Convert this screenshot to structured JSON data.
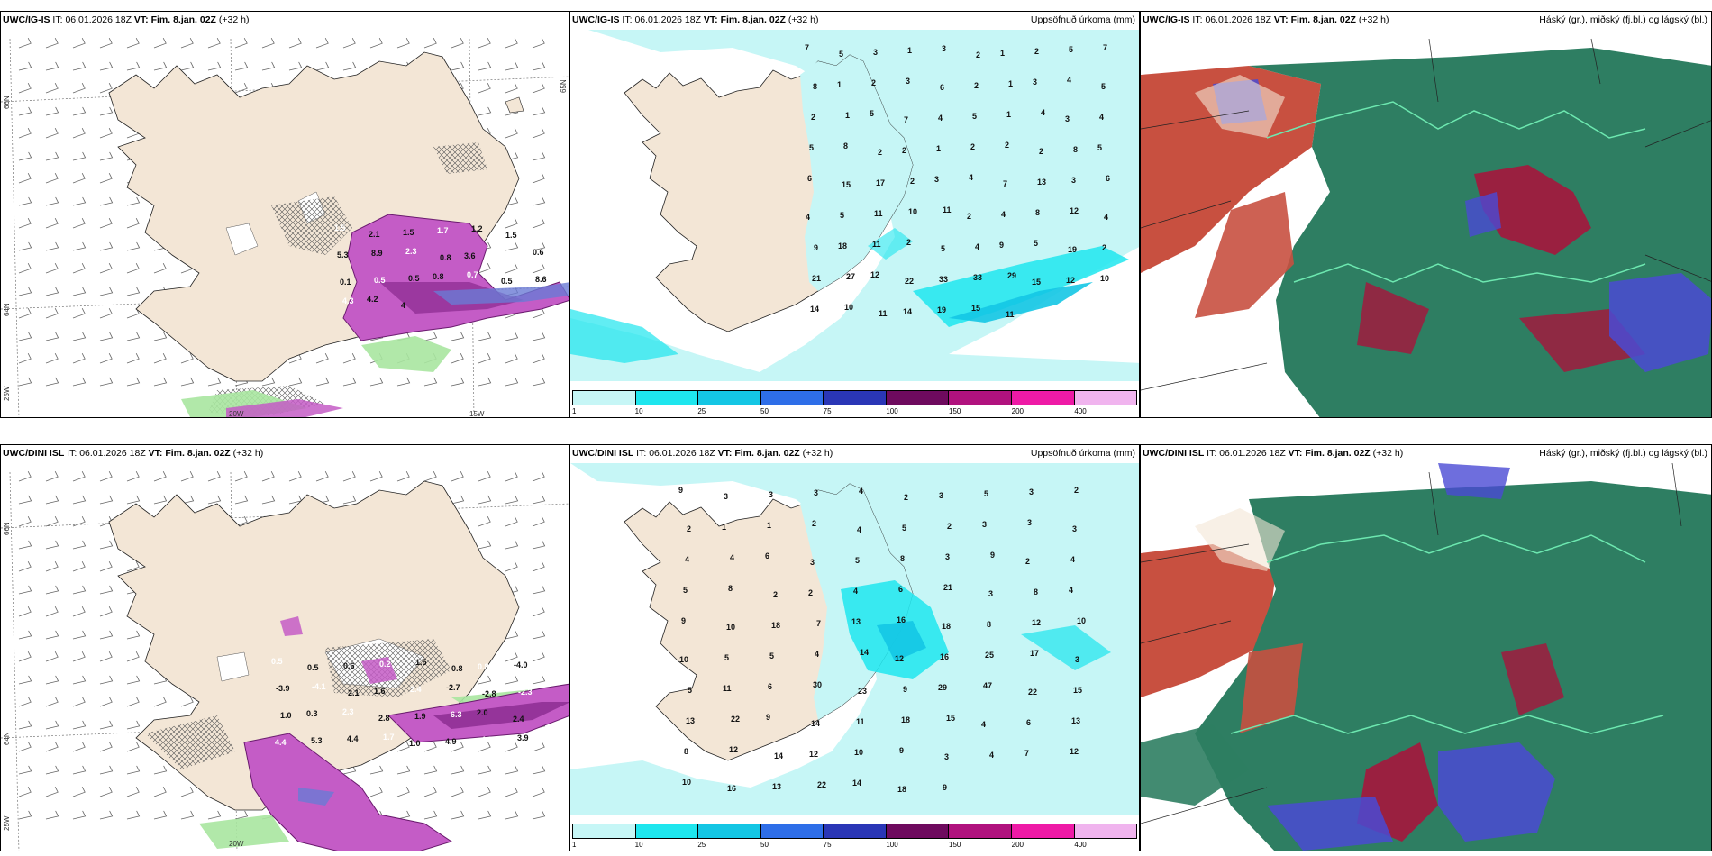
{
  "panels": {
    "p1": {
      "model": "UWC/IG-IS",
      "it_label": "IT:",
      "it_value": "06.01.2026 18Z",
      "vt_label": "VT:",
      "vt_value": "Fim. 8.jan. 02Z",
      "lead": "(+32 h)",
      "coords": {
        "lat66": "66N",
        "lat64": "64N",
        "lon25": "25W",
        "lon20": "20W",
        "lon15": "15W",
        "lat65r": "65N"
      },
      "labels": [
        "1.5",
        "2.1",
        "1.5",
        "1.7",
        "1.2",
        "1.5",
        "0.8",
        "5.3",
        "8.9",
        "2.3",
        "0.8",
        "3.6",
        "0.6",
        "0.6",
        "0.1",
        "0.5",
        "0.5",
        "0.8",
        "0.7",
        "0.5",
        "8.6",
        "4.3",
        "4.2",
        "4"
      ]
    },
    "p2": {
      "model": "UWC/IG-IS",
      "it_label": "IT:",
      "it_value": "06.01.2026 18Z",
      "vt_label": "VT:",
      "vt_value": "Fim. 8.jan. 02Z",
      "lead": "(+32 h)",
      "title_right": "Uppsöfnuð úrkoma (mm)",
      "labels": [
        "7",
        "5",
        "3",
        "1",
        "3",
        "2",
        "1",
        "2",
        "5",
        "7",
        "8",
        "1",
        "2",
        "3",
        "6",
        "2",
        "1",
        "3",
        "4",
        "5",
        "2",
        "1",
        "5",
        "7",
        "4",
        "5",
        "1",
        "4",
        "3",
        "4",
        "5",
        "8",
        "2",
        "2",
        "1",
        "2",
        "2",
        "2",
        "8",
        "5",
        "6",
        "15",
        "17",
        "2",
        "3",
        "4",
        "7",
        "13",
        "3",
        "6",
        "4",
        "5",
        "11",
        "10",
        "11",
        "2",
        "4",
        "8",
        "12",
        "4",
        "9",
        "18",
        "11",
        "2",
        "5",
        "4",
        "9",
        "5",
        "19",
        "2",
        "21",
        "27",
        "12",
        "22",
        "33",
        "33",
        "29",
        "15",
        "12",
        "10",
        "14",
        "10",
        "11",
        "14",
        "19",
        "15",
        "11"
      ],
      "colorbar_ticks": [
        "1",
        "10",
        "25",
        "50",
        "75",
        "100",
        "150",
        "200",
        "400"
      ],
      "colorbar_colors": [
        "#c6f6f6",
        "#1ee6ee",
        "#14c6e4",
        "#2e6ee8",
        "#2a36b6",
        "#6e0a5e",
        "#b0127e",
        "#ee1aa6",
        "#f0b4ee"
      ]
    },
    "p3": {
      "model": "UWC/IG-IS",
      "it_label": "IT:",
      "it_value": "06.01.2026 18Z",
      "vt_label": "VT:",
      "vt_value": "Fim. 8.jan. 02Z",
      "lead": "(+32 h)",
      "title_right": "Háský (gr.), miðský (fj.bl.) og lágský (bl.)"
    },
    "p4": {
      "model": "UWC/DINI ISL",
      "it_label": "IT:",
      "it_value": "06.01.2026 18Z",
      "vt_label": "VT:",
      "vt_value": "Fim. 8.jan. 02Z",
      "lead": "(+32 h)",
      "coords": {
        "lat66": "66N",
        "lat64": "64N",
        "lon25": "25W",
        "lon20": "20W"
      },
      "labels": [
        "0.5",
        "0.5",
        "0.6",
        "0.2",
        "1.5",
        "0.8",
        "0.8",
        "-4.0",
        "-3.9",
        "-4.1",
        "2.1",
        "1.6",
        "2.4",
        "-2.7",
        "-2.8",
        "-2.3",
        "1.0",
        "0.3",
        "2.3",
        "2.8",
        "1.9",
        "6.3",
        "2.0",
        "2.4",
        "4.4",
        "5.3",
        "4.4",
        "1.7",
        "1.0",
        "4.9",
        "4.9",
        "3.9"
      ]
    },
    "p5": {
      "model": "UWC/DINI ISL",
      "it_label": "IT:",
      "it_value": "06.01.2026 18Z",
      "vt_label": "VT:",
      "vt_value": "Fim. 8.jan. 02Z",
      "lead": "(+32 h)",
      "title_right": "Uppsöfnuð úrkoma (mm)",
      "labels": [
        "9",
        "3",
        "3",
        "3",
        "4",
        "2",
        "3",
        "5",
        "3",
        "2",
        "2",
        "1",
        "1",
        "2",
        "4",
        "5",
        "2",
        "3",
        "3",
        "3",
        "4",
        "4",
        "6",
        "3",
        "5",
        "8",
        "3",
        "9",
        "2",
        "4",
        "5",
        "8",
        "2",
        "2",
        "4",
        "6",
        "21",
        "3",
        "8",
        "4",
        "9",
        "10",
        "18",
        "7",
        "13",
        "16",
        "18",
        "8",
        "12",
        "10",
        "10",
        "5",
        "5",
        "4",
        "14",
        "12",
        "16",
        "25",
        "17",
        "3",
        "5",
        "11",
        "6",
        "30",
        "23",
        "9",
        "29",
        "47",
        "22",
        "15",
        "13",
        "22",
        "9",
        "14",
        "11",
        "18",
        "15",
        "4",
        "6",
        "13",
        "8",
        "12",
        "14",
        "12",
        "10",
        "9",
        "3",
        "4",
        "7",
        "12",
        "10",
        "16",
        "13",
        "22",
        "14",
        "18",
        "9"
      ],
      "colorbar_ticks": [
        "1",
        "10",
        "25",
        "50",
        "75",
        "100",
        "150",
        "200",
        "400"
      ],
      "colorbar_colors": [
        "#c6f6f6",
        "#1ee6ee",
        "#14c6e4",
        "#2e6ee8",
        "#2a36b6",
        "#6e0a5e",
        "#b0127e",
        "#ee1aa6",
        "#f0b4ee"
      ]
    },
    "p6": {
      "model": "UWC/DINI ISL",
      "it_label": "IT:",
      "it_value": "06.01.2026 18Z",
      "vt_label": "VT:",
      "vt_value": "Fim. 8.jan. 02Z",
      "lead": "(+32 h)",
      "title_right": "Háský (gr.), miðský (fj.bl.) og lágský (bl.)"
    }
  },
  "colors": {
    "land": "#f3e6d6",
    "sea": "#ffffff",
    "purple": "#c45cc6",
    "purple_dark": "#8a2a8e",
    "green": "#a8e6a0",
    "cyan_light": "#c6f6f6",
    "cyan": "#1ee6ee",
    "cloud_high": "#2e7e62",
    "cloud_mid": "#9a2040",
    "cloud_low": "#4a4ad4",
    "cloud_red": "#c85040"
  }
}
